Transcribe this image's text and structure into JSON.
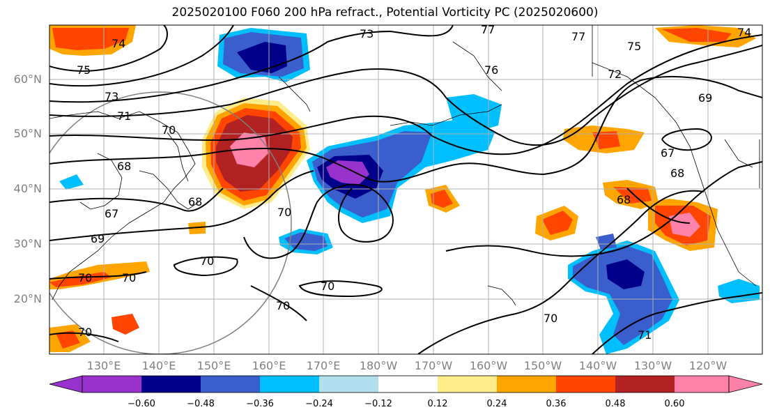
{
  "title": "2025020100 F060 200 hPa refract., Potential Vorticity PC (2025020600)",
  "lat_labels": [
    "60°N",
    "50°N",
    "40°N",
    "30°N",
    "20°N"
  ],
  "lon_labels": [
    "130°E",
    "140°E",
    "150°E",
    "160°E",
    "170°E",
    "180°W",
    "170°W",
    "160°W",
    "150°W",
    "140°W",
    "130°W",
    "120°W"
  ],
  "colorbar": {
    "colors": [
      "#9932cc",
      "#00008b",
      "#3a5fcd",
      "#00bfff",
      "#b2dfee",
      "#ffffff",
      "#ffec8b",
      "#ffa500",
      "#ff4500",
      "#b22222",
      "#ff82ab"
    ],
    "ticks": [
      "−0.60",
      "−0.48",
      "−0.36",
      "−0.24",
      "−0.12",
      "0.12",
      "0.24",
      "0.36",
      "0.48",
      "0.60"
    ]
  },
  "contour_labels": [
    "74",
    "75",
    "73",
    "71",
    "70",
    "68",
    "67",
    "68",
    "69",
    "70",
    "70",
    "70",
    "70",
    "70",
    "70",
    "73",
    "77",
    "77",
    "76",
    "75",
    "72",
    "69",
    "67",
    "68",
    "68",
    "70",
    "71",
    "70",
    "74"
  ]
}
